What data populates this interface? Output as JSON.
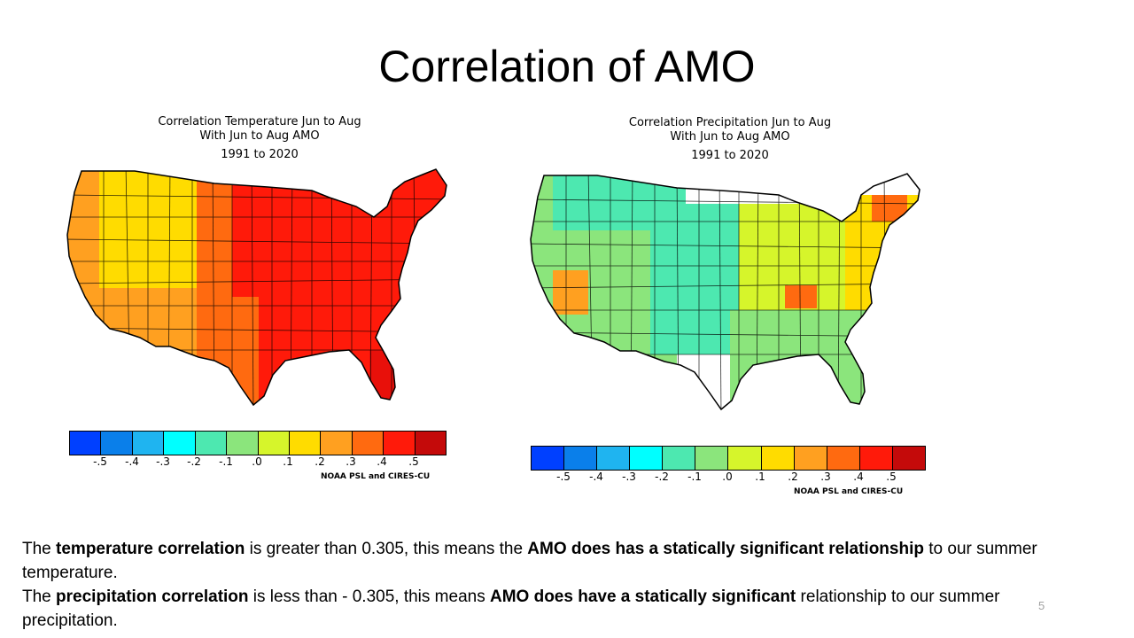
{
  "slide": {
    "title": "Correlation of AMO",
    "number": "5"
  },
  "maps": [
    {
      "title_lines": [
        "Correlation Temperature Jun to Aug",
        "With Jun to Aug AMO",
        "1991 to 2020"
      ],
      "credit": "NOAA PSL and CIRES-CU"
    },
    {
      "title_lines": [
        "Correlation Precipitation Jun to Aug",
        "With Jun to Aug AMO",
        "1991 to 2020"
      ],
      "credit": "NOAA PSL and CIRES-CU"
    }
  ],
  "colorbar": {
    "colors": [
      "#0040ff",
      "#0a7fea",
      "#1fb4f0",
      "#00ffff",
      "#4de8b0",
      "#8be57c",
      "#d6f52b",
      "#ffdc00",
      "#ffa020",
      "#ff6a10",
      "#ff1a0a",
      "#c40a0a"
    ],
    "tick_labels": [
      "-.5",
      "-.4",
      "-.3",
      "-.2",
      "-.1",
      ".0",
      ".1",
      ".2",
      ".3",
      ".4",
      ".5"
    ]
  },
  "map_fill": {
    "temperature": {
      "west_coast": "#ffa020",
      "interior_west": "#ffdc00",
      "southwest": "#ffa020",
      "plains": "#ff6a10",
      "midwest": "#ff1a0a",
      "southeast": "#ff1a0a",
      "northeast": "#ff1a0a",
      "florida": "#e8100a"
    },
    "precipitation": {
      "west_coast": "#8be57c",
      "interior_west": "#8be57c",
      "northern_rockies": "#4de8b0",
      "plains": "#4de8b0",
      "midwest": "#d6f52b",
      "southeast": "#8be57c",
      "northeast": "#ffdc00",
      "new_england": "#ff6a10",
      "tennessee_valley": "#ff6a10",
      "california": "#ffa020"
    }
  },
  "caption": {
    "line1": {
      "t1": "The ",
      "b1": "temperature correlation",
      "t2": " is greater than 0.305, this means the ",
      "b2": "AMO  does has a statically significant relationship",
      "t3": " to our summer temperature."
    },
    "line2": {
      "t1": "The ",
      "b1": "precipitation correlation",
      "t2": " is less than - 0.305, this means ",
      "b2": "AMO does have a statically significant",
      "t3": " relationship to our summer precipitation."
    }
  }
}
